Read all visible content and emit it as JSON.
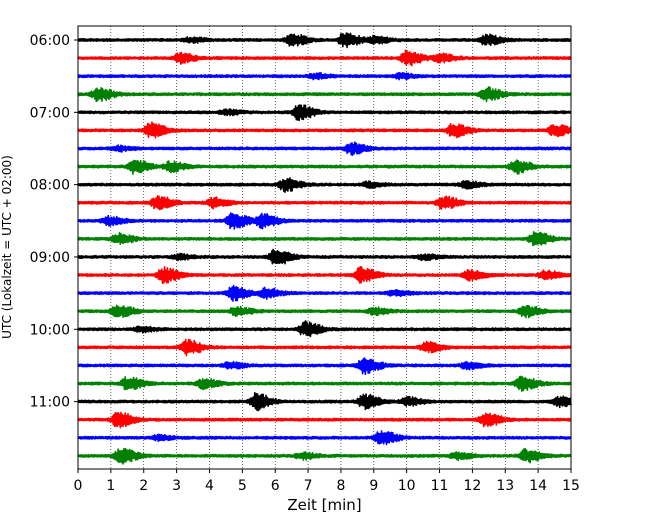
{
  "chart_data": {
    "type": "line",
    "xlabel": "Zeit  [min]",
    "ylabel": "UTC (Lokalzeit = UTC + 02:00)",
    "xlim": [
      0,
      15
    ],
    "x_ticks": [
      0,
      1,
      2,
      3,
      4,
      5,
      6,
      7,
      8,
      9,
      10,
      11,
      12,
      13,
      14,
      15
    ],
    "y_tick_labels": [
      "06:00",
      "07:00",
      "08:00",
      "09:00",
      "10:00",
      "11:00"
    ],
    "y_tick_trace_index": [
      0,
      4,
      8,
      12,
      16,
      20
    ],
    "grid": "vertical-dotted",
    "trace_colors": [
      "#000000",
      "#ff0000",
      "#0000ff",
      "#008000"
    ],
    "trace_count": 24,
    "trace_interval_minutes": 15,
    "amplitude_note": "relative amplitude",
    "traces": [
      {
        "start": "06:00",
        "events": [
          [
            6.5,
            0.7
          ],
          [
            8.1,
            0.9
          ],
          [
            9.0,
            0.4
          ],
          [
            12.4,
            0.6
          ],
          [
            3.4,
            0.3
          ]
        ]
      },
      {
        "start": "06:15",
        "events": [
          [
            3.1,
            0.6
          ],
          [
            10.0,
            0.9
          ],
          [
            11.0,
            0.5
          ]
        ]
      },
      {
        "start": "06:30",
        "events": [
          [
            7.2,
            0.3
          ],
          [
            9.8,
            0.3
          ]
        ]
      },
      {
        "start": "06:45",
        "events": [
          [
            0.6,
            0.8
          ],
          [
            12.4,
            0.8
          ]
        ]
      },
      {
        "start": "07:00",
        "events": [
          [
            6.7,
            0.9
          ],
          [
            4.5,
            0.3
          ]
        ]
      },
      {
        "start": "07:15",
        "events": [
          [
            2.2,
            0.9
          ],
          [
            11.4,
            0.8
          ],
          [
            14.5,
            0.7
          ]
        ]
      },
      {
        "start": "07:30",
        "events": [
          [
            8.3,
            0.7
          ],
          [
            1.2,
            0.3
          ]
        ]
      },
      {
        "start": "07:45",
        "events": [
          [
            1.7,
            0.8
          ],
          [
            2.8,
            0.6
          ],
          [
            13.3,
            0.8
          ]
        ]
      },
      {
        "start": "08:00",
        "events": [
          [
            6.3,
            0.8
          ],
          [
            8.8,
            0.3
          ],
          [
            11.8,
            0.4
          ]
        ]
      },
      {
        "start": "08:15",
        "events": [
          [
            2.4,
            0.8
          ],
          [
            4.1,
            0.6
          ],
          [
            11.1,
            0.8
          ]
        ]
      },
      {
        "start": "08:30",
        "events": [
          [
            0.9,
            0.5
          ],
          [
            4.7,
            1.0
          ],
          [
            5.6,
            0.8
          ]
        ]
      },
      {
        "start": "08:45",
        "events": [
          [
            1.2,
            0.6
          ],
          [
            13.9,
            0.8
          ]
        ]
      },
      {
        "start": "09:00",
        "events": [
          [
            6.0,
            1.0
          ],
          [
            3.0,
            0.3
          ],
          [
            10.5,
            0.3
          ]
        ]
      },
      {
        "start": "09:15",
        "events": [
          [
            2.6,
            0.9
          ],
          [
            8.6,
            0.9
          ],
          [
            11.9,
            0.6
          ],
          [
            14.2,
            0.5
          ]
        ]
      },
      {
        "start": "09:30",
        "events": [
          [
            4.7,
            0.9
          ],
          [
            5.7,
            0.6
          ],
          [
            9.6,
            0.3
          ]
        ]
      },
      {
        "start": "09:45",
        "events": [
          [
            1.2,
            0.8
          ],
          [
            4.8,
            0.5
          ],
          [
            9.0,
            0.4
          ],
          [
            13.6,
            0.7
          ]
        ]
      },
      {
        "start": "10:00",
        "events": [
          [
            6.9,
            0.9
          ],
          [
            1.9,
            0.3
          ]
        ]
      },
      {
        "start": "10:15",
        "events": [
          [
            3.3,
            0.9
          ],
          [
            10.6,
            0.6
          ]
        ]
      },
      {
        "start": "10:30",
        "events": [
          [
            8.7,
            1.0
          ],
          [
            4.6,
            0.4
          ],
          [
            11.8,
            0.4
          ]
        ]
      },
      {
        "start": "10:45",
        "events": [
          [
            1.5,
            0.8
          ],
          [
            3.8,
            0.6
          ],
          [
            13.5,
            0.8
          ]
        ]
      },
      {
        "start": "11:00",
        "events": [
          [
            5.4,
            1.0
          ],
          [
            8.7,
            0.9
          ],
          [
            10.0,
            0.5
          ],
          [
            14.6,
            0.6
          ]
        ]
      },
      {
        "start": "11:15",
        "events": [
          [
            1.2,
            0.9
          ],
          [
            12.4,
            0.8
          ]
        ]
      },
      {
        "start": "11:30",
        "events": [
          [
            9.2,
            0.9
          ],
          [
            2.4,
            0.3
          ]
        ]
      },
      {
        "start": "11:45",
        "events": [
          [
            1.3,
            1.0
          ],
          [
            6.8,
            0.4
          ],
          [
            11.5,
            0.4
          ],
          [
            13.6,
            0.8
          ]
        ]
      }
    ]
  }
}
